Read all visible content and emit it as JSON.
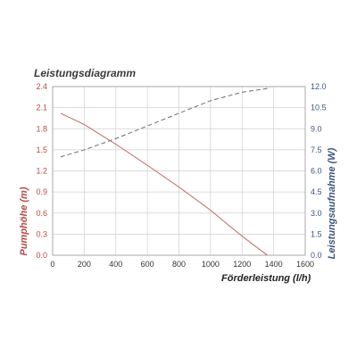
{
  "chart_data": {
    "type": "line",
    "title": "Leistungsdiagramm",
    "xlabel": "Förderleistung (l/h)",
    "ylabel_left": "Pumphöhe (m)",
    "ylabel_right": "Leistungsaufnahme (W)",
    "xlim": [
      0,
      1600
    ],
    "ylim_left": [
      0,
      2.4
    ],
    "ylim_right": [
      0,
      12.0
    ],
    "x_ticks": [
      "0",
      "200",
      "400",
      "600",
      "800",
      "1000",
      "1200",
      "1400",
      "1600"
    ],
    "y_left_ticks": [
      "0.0",
      "0.3",
      "0.6",
      "0.9",
      "1.2",
      "1.5",
      "1.8",
      "2.1",
      "2.4"
    ],
    "y_right_ticks": [
      "0.0",
      "1.5",
      "3.0",
      "4.5",
      "6.0",
      "7.5",
      "9.0",
      "10.5",
      "12.0"
    ],
    "grid": true,
    "series": [
      {
        "axis": "left",
        "style": "solid",
        "color": "#c2766f",
        "x": [
          50,
          200,
          400,
          600,
          800,
          1000,
          1200,
          1360
        ],
        "y": [
          2.02,
          1.86,
          1.58,
          1.28,
          0.97,
          0.64,
          0.27,
          0.0
        ]
      },
      {
        "axis": "right",
        "style": "dashed",
        "color": "#7a7a7a",
        "x": [
          50,
          200,
          400,
          600,
          800,
          1000,
          1200,
          1380
        ],
        "y": [
          7.0,
          7.5,
          8.3,
          9.2,
          10.1,
          11.0,
          11.6,
          11.9
        ]
      }
    ],
    "colors": {
      "left_axis": "#b84a45",
      "right_axis": "#3d5680",
      "grid": "#d0d0d0"
    }
  }
}
